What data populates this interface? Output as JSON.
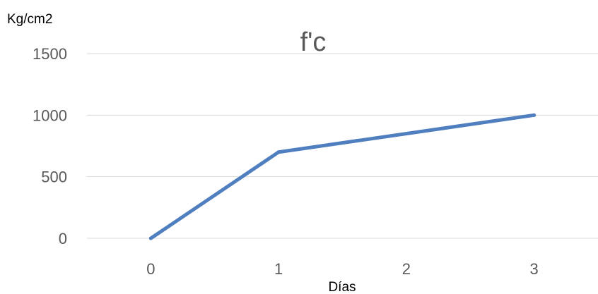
{
  "chart_data": {
    "type": "line",
    "title": "f'c",
    "xlabel": "Días",
    "ylabel": "Kg/cm2",
    "x": [
      0,
      1,
      3
    ],
    "series": [
      {
        "values": [
          0,
          700,
          1000
        ],
        "color": "#4f7fbf"
      }
    ],
    "xticks": [
      "0",
      "1",
      "2",
      "3"
    ],
    "yticks": [
      "0",
      "500",
      "1000",
      "1500"
    ],
    "xlim": [
      -0.5,
      3.5
    ],
    "ylim": [
      0,
      1500
    ],
    "grid": "horizontal",
    "legend": "none"
  }
}
